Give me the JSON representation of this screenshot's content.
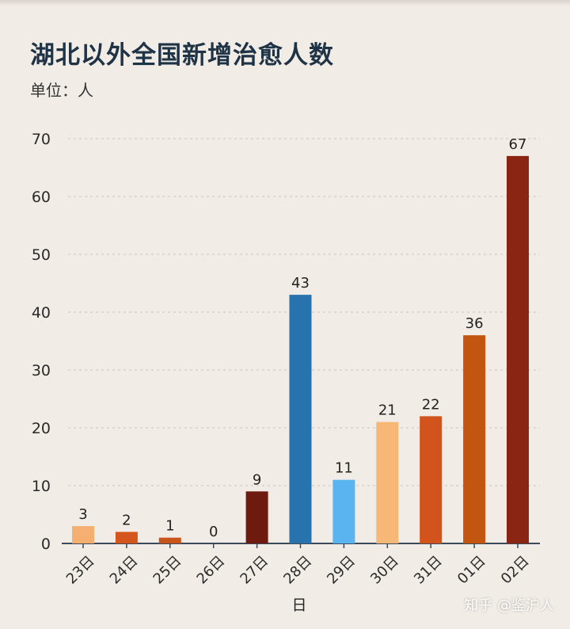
{
  "header": {
    "title": "湖北以外全国新增治愈人数",
    "unit": "单位：人"
  },
  "watermark": "知乎 @鉴沪人",
  "chart_data": {
    "type": "bar",
    "title": "湖北以外全国新增治愈人数",
    "ylabel": "单位：人",
    "xlabel": "日",
    "categories": [
      "23日",
      "24日",
      "25日",
      "26日",
      "27日",
      "28日",
      "29日",
      "30日",
      "31日",
      "01日",
      "02日"
    ],
    "values": [
      3,
      2,
      1,
      0,
      9,
      43,
      11,
      21,
      22,
      36,
      67
    ],
    "colors": [
      "#f5b071",
      "#d4561c",
      "#c8551a",
      "#c8551a",
      "#6e1a0f",
      "#2873ae",
      "#5ab4f0",
      "#f7b777",
      "#d2531c",
      "#c2550f",
      "#8a2513"
    ],
    "ylim": [
      0,
      70
    ],
    "yticks": [
      0,
      10,
      20,
      30,
      40,
      50,
      60,
      70
    ],
    "grid": true
  }
}
